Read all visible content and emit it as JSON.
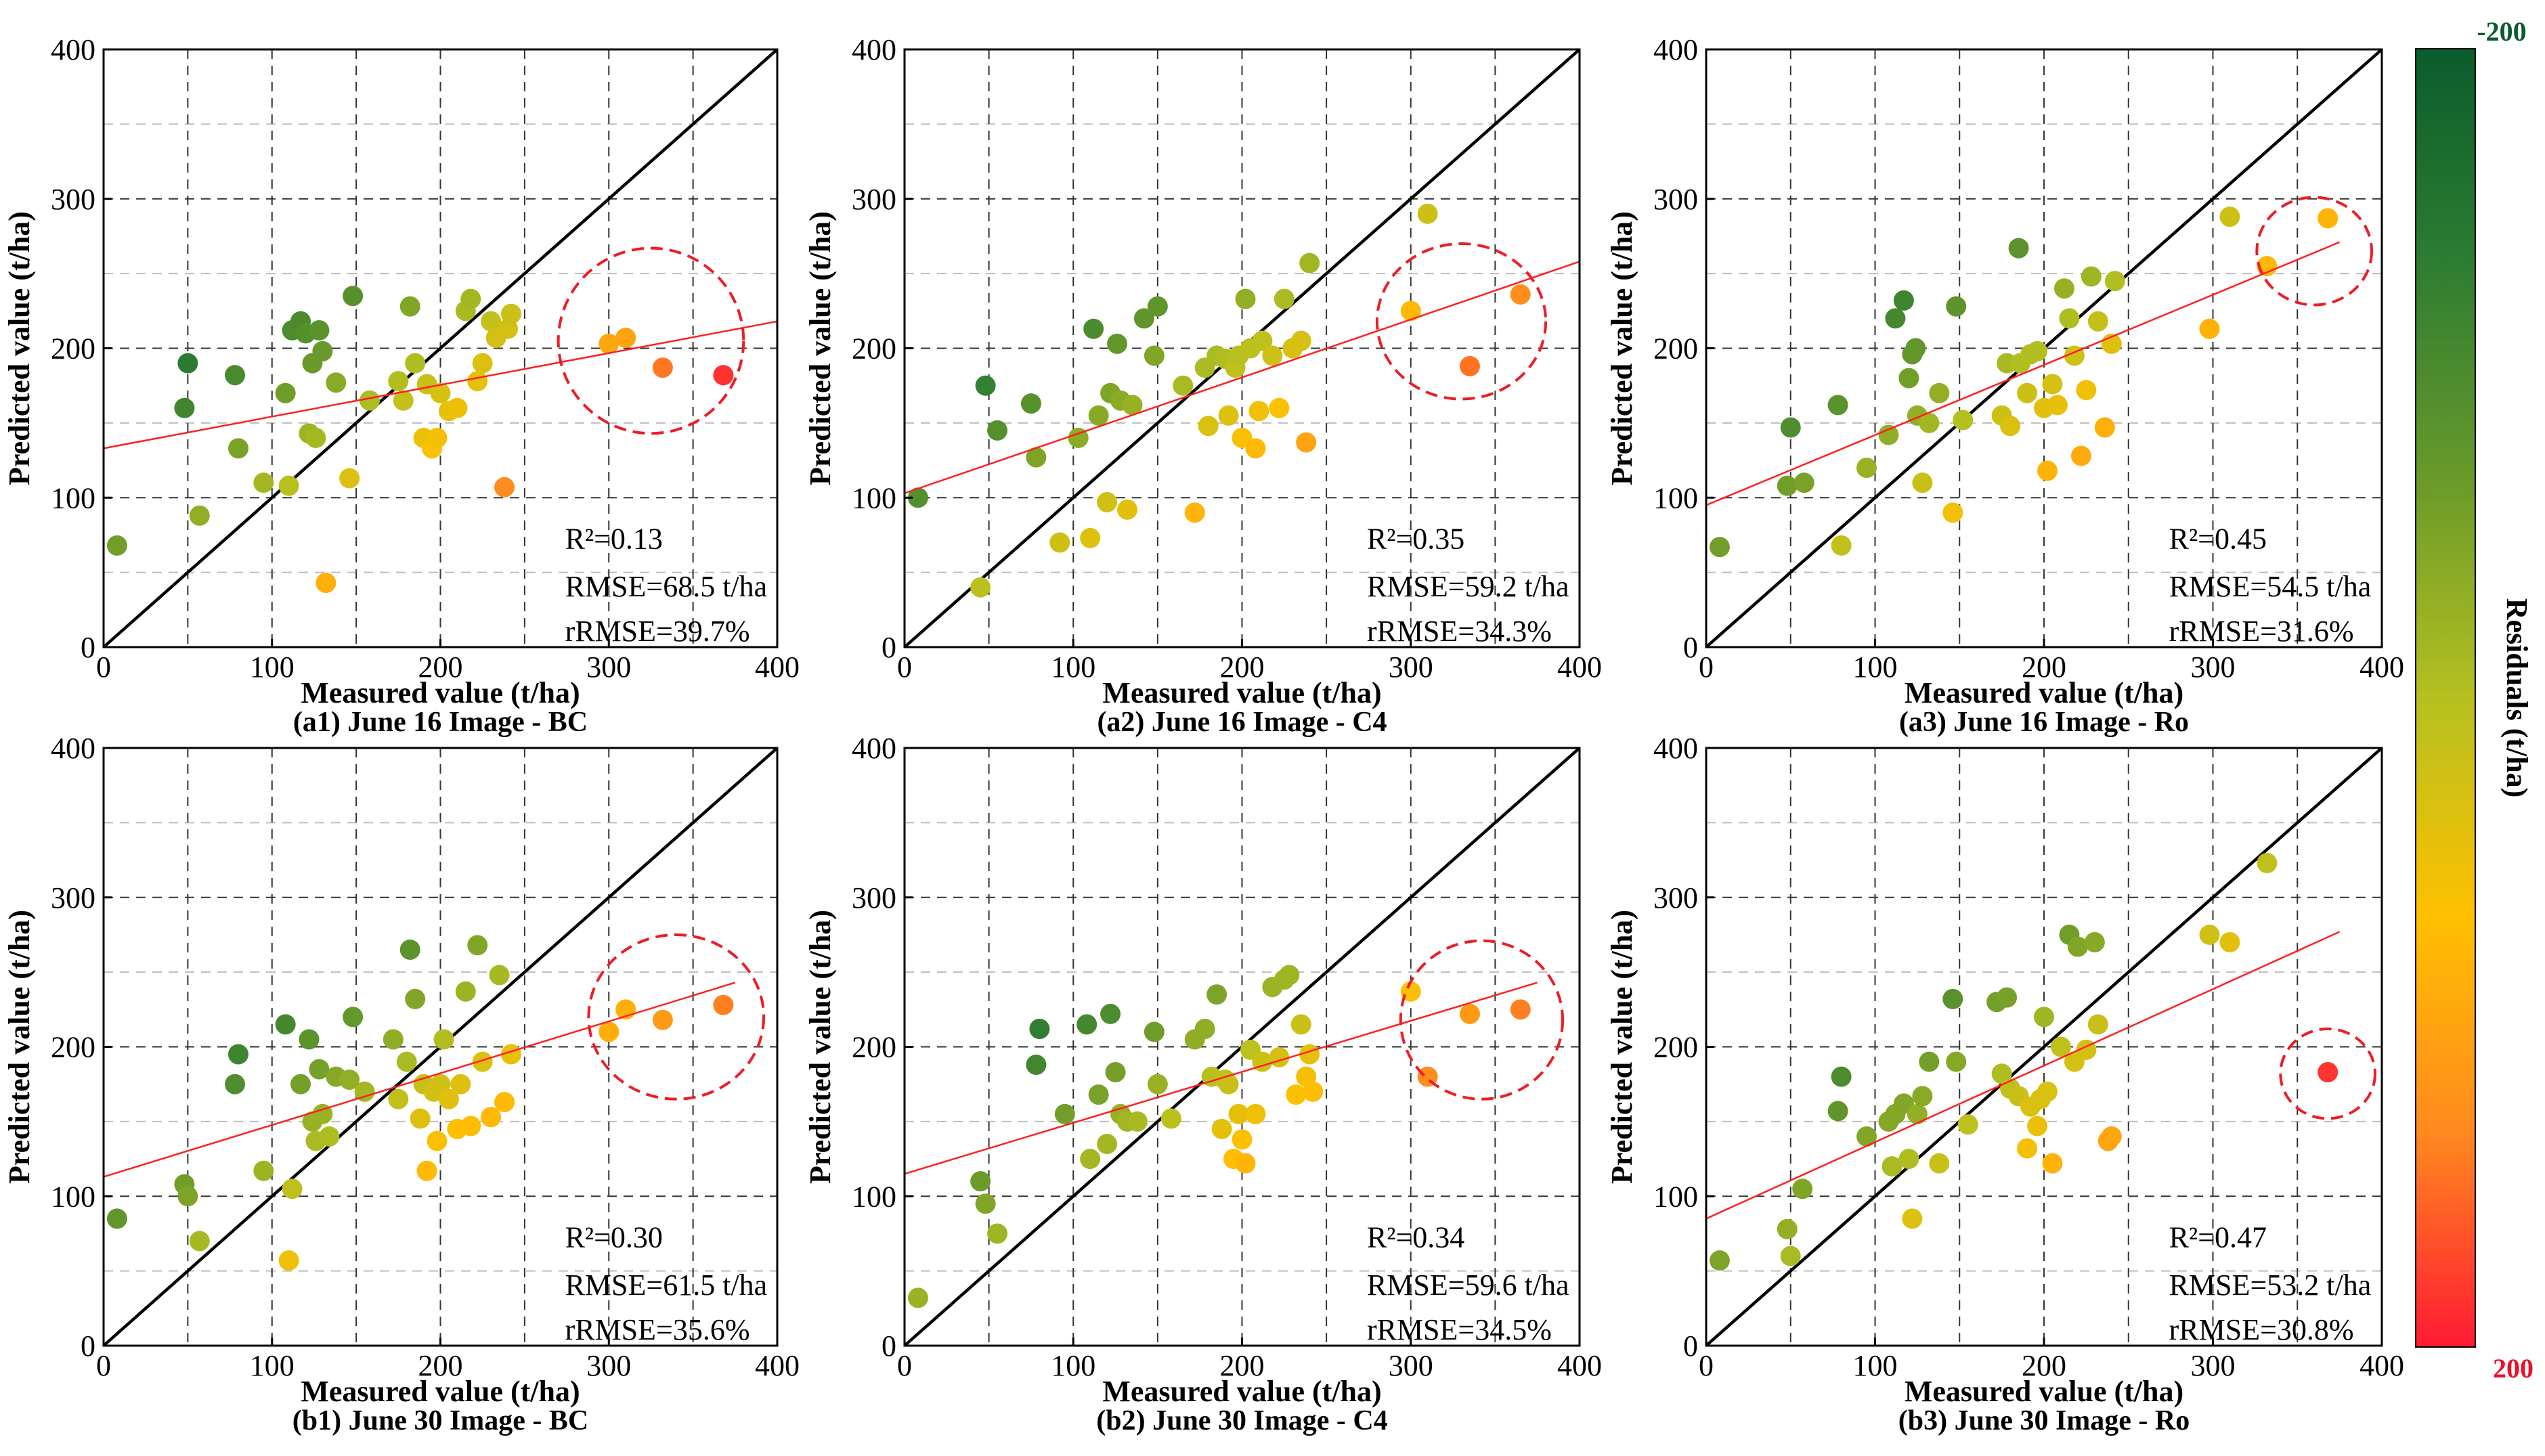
{
  "chart_data": [
    {
      "id": "a1",
      "type": "scatter",
      "caption": "(a1) June 16 Image - BC",
      "xlabel": "Measured value (t/ha)",
      "ylabel": "Predicted value (t/ha)",
      "xlim": [
        0,
        400
      ],
      "ylim": [
        0,
        400
      ],
      "ticks": [
        "0",
        "100",
        "200",
        "300",
        "400"
      ],
      "stats": {
        "r2": "R²=0.13",
        "rmse": "RMSE=68.5 t/ha",
        "rrmse": "rRMSE=39.7%"
      },
      "fit_line": [
        [
          0,
          133
        ],
        [
          400,
          218
        ]
      ],
      "outlier_circle": {
        "cx": 325,
        "cy": 205,
        "rx": 55,
        "ry": 62
      },
      "points": [
        [
          8,
          68
        ],
        [
          48,
          160
        ],
        [
          50,
          190
        ],
        [
          57,
          88
        ],
        [
          78,
          182
        ],
        [
          80,
          133
        ],
        [
          95,
          110
        ],
        [
          108,
          170
        ],
        [
          110,
          108
        ],
        [
          112,
          212
        ],
        [
          117,
          218
        ],
        [
          120,
          210
        ],
        [
          122,
          143
        ],
        [
          124,
          190
        ],
        [
          126,
          140
        ],
        [
          128,
          212
        ],
        [
          130,
          198
        ],
        [
          132,
          43
        ],
        [
          138,
          177
        ],
        [
          146,
          113
        ],
        [
          148,
          235
        ],
        [
          158,
          165
        ],
        [
          175,
          178
        ],
        [
          178,
          165
        ],
        [
          182,
          228
        ],
        [
          185,
          190
        ],
        [
          190,
          140
        ],
        [
          192,
          176
        ],
        [
          195,
          133
        ],
        [
          198,
          140
        ],
        [
          200,
          170
        ],
        [
          205,
          158
        ],
        [
          210,
          160
        ],
        [
          215,
          225
        ],
        [
          218,
          233
        ],
        [
          222,
          178
        ],
        [
          225,
          190
        ],
        [
          230,
          218
        ],
        [
          233,
          207
        ],
        [
          238,
          107
        ],
        [
          240,
          213
        ],
        [
          242,
          223
        ],
        [
          300,
          203
        ],
        [
          310,
          207
        ],
        [
          332,
          187
        ],
        [
          368,
          182
        ]
      ]
    },
    {
      "id": "a2",
      "type": "scatter",
      "caption": "(a2) June 16 Image - C4",
      "xlabel": "Measured value (t/ha)",
      "ylabel": "Predicted value (t/ha)",
      "xlim": [
        0,
        400
      ],
      "ylim": [
        0,
        400
      ],
      "ticks": [
        "0",
        "100",
        "200",
        "300",
        "400"
      ],
      "stats": {
        "r2": "R²=0.35",
        "rmse": "RMSE=59.2 t/ha",
        "rrmse": "rRMSE=34.3%"
      },
      "fit_line": [
        [
          0,
          103
        ],
        [
          400,
          258
        ]
      ],
      "outlier_circle": {
        "cx": 330,
        "cy": 218,
        "rx": 50,
        "ry": 52
      },
      "points": [
        [
          8,
          100
        ],
        [
          45,
          40
        ],
        [
          48,
          175
        ],
        [
          55,
          145
        ],
        [
          75,
          163
        ],
        [
          78,
          127
        ],
        [
          92,
          70
        ],
        [
          103,
          140
        ],
        [
          110,
          73
        ],
        [
          112,
          213
        ],
        [
          115,
          155
        ],
        [
          120,
          97
        ],
        [
          122,
          170
        ],
        [
          126,
          203
        ],
        [
          128,
          165
        ],
        [
          132,
          92
        ],
        [
          135,
          162
        ],
        [
          142,
          220
        ],
        [
          148,
          195
        ],
        [
          150,
          228
        ],
        [
          165,
          175
        ],
        [
          172,
          90
        ],
        [
          178,
          187
        ],
        [
          180,
          148
        ],
        [
          185,
          195
        ],
        [
          190,
          193
        ],
        [
          192,
          155
        ],
        [
          196,
          187
        ],
        [
          198,
          195
        ],
        [
          200,
          140
        ],
        [
          202,
          233
        ],
        [
          205,
          200
        ],
        [
          208,
          133
        ],
        [
          210,
          158
        ],
        [
          212,
          205
        ],
        [
          218,
          195
        ],
        [
          222,
          160
        ],
        [
          225,
          233
        ],
        [
          230,
          200
        ],
        [
          235,
          205
        ],
        [
          238,
          137
        ],
        [
          240,
          257
        ],
        [
          300,
          225
        ],
        [
          310,
          290
        ],
        [
          335,
          188
        ],
        [
          365,
          236
        ]
      ]
    },
    {
      "id": "a3",
      "type": "scatter",
      "caption": "(a3) June 16 Image - Ro",
      "xlabel": "Measured value (t/ha)",
      "ylabel": "Predicted value (t/ha)",
      "xlim": [
        0,
        400
      ],
      "ylim": [
        0,
        400
      ],
      "ticks": [
        "0",
        "100",
        "200",
        "300",
        "400"
      ],
      "stats": {
        "r2": "R²=0.45",
        "rmse": "RMSE=54.5 t/ha",
        "rrmse": "rRMSE=31.6%"
      },
      "fit_line": [
        [
          0,
          95
        ],
        [
          375,
          271
        ]
      ],
      "outlier_circle": {
        "cx": 360,
        "cy": 265,
        "rx": 34,
        "ry": 36
      },
      "points": [
        [
          8,
          67
        ],
        [
          48,
          108
        ],
        [
          50,
          147
        ],
        [
          58,
          110
        ],
        [
          78,
          162
        ],
        [
          80,
          68
        ],
        [
          95,
          120
        ],
        [
          108,
          142
        ],
        [
          112,
          220
        ],
        [
          117,
          232
        ],
        [
          120,
          180
        ],
        [
          122,
          196
        ],
        [
          124,
          200
        ],
        [
          125,
          155
        ],
        [
          128,
          110
        ],
        [
          132,
          150
        ],
        [
          138,
          170
        ],
        [
          146,
          90
        ],
        [
          148,
          228
        ],
        [
          152,
          152
        ],
        [
          175,
          155
        ],
        [
          178,
          190
        ],
        [
          180,
          148
        ],
        [
          185,
          267
        ],
        [
          186,
          190
        ],
        [
          190,
          170
        ],
        [
          192,
          196
        ],
        [
          196,
          198
        ],
        [
          200,
          160
        ],
        [
          202,
          118
        ],
        [
          205,
          176
        ],
        [
          208,
          162
        ],
        [
          212,
          240
        ],
        [
          215,
          220
        ],
        [
          218,
          195
        ],
        [
          222,
          128
        ],
        [
          225,
          172
        ],
        [
          228,
          248
        ],
        [
          232,
          218
        ],
        [
          236,
          147
        ],
        [
          240,
          203
        ],
        [
          242,
          245
        ],
        [
          298,
          213
        ],
        [
          310,
          288
        ],
        [
          332,
          255
        ],
        [
          368,
          287
        ]
      ]
    },
    {
      "id": "b1",
      "type": "scatter",
      "caption": "(b1) June 30 Image - BC",
      "xlabel": "Measured value (t/ha)",
      "ylabel": "Predicted value (t/ha)",
      "xlim": [
        0,
        400
      ],
      "ylim": [
        0,
        400
      ],
      "ticks": [
        "0",
        "100",
        "200",
        "300",
        "400"
      ],
      "stats": {
        "r2": "R²=0.30",
        "rmse": "RMSE=61.5 t/ha",
        "rrmse": "rRMSE=35.6%"
      },
      "fit_line": [
        [
          0,
          113
        ],
        [
          375,
          243
        ]
      ],
      "outlier_circle": {
        "cx": 340,
        "cy": 220,
        "rx": 52,
        "ry": 55
      },
      "points": [
        [
          8,
          85
        ],
        [
          48,
          108
        ],
        [
          50,
          100
        ],
        [
          57,
          70
        ],
        [
          78,
          175
        ],
        [
          80,
          195
        ],
        [
          95,
          117
        ],
        [
          108,
          215
        ],
        [
          110,
          57
        ],
        [
          112,
          105
        ],
        [
          117,
          175
        ],
        [
          122,
          205
        ],
        [
          124,
          150
        ],
        [
          126,
          137
        ],
        [
          128,
          185
        ],
        [
          130,
          155
        ],
        [
          134,
          140
        ],
        [
          138,
          180
        ],
        [
          146,
          178
        ],
        [
          148,
          220
        ],
        [
          155,
          170
        ],
        [
          172,
          205
        ],
        [
          175,
          165
        ],
        [
          180,
          190
        ],
        [
          182,
          265
        ],
        [
          185,
          232
        ],
        [
          188,
          152
        ],
        [
          190,
          175
        ],
        [
          192,
          117
        ],
        [
          196,
          170
        ],
        [
          198,
          137
        ],
        [
          200,
          175
        ],
        [
          202,
          205
        ],
        [
          205,
          165
        ],
        [
          210,
          145
        ],
        [
          212,
          175
        ],
        [
          215,
          237
        ],
        [
          218,
          147
        ],
        [
          222,
          268
        ],
        [
          225,
          190
        ],
        [
          230,
          153
        ],
        [
          235,
          248
        ],
        [
          238,
          163
        ],
        [
          242,
          195
        ],
        [
          300,
          210
        ],
        [
          310,
          225
        ],
        [
          332,
          218
        ],
        [
          368,
          228
        ]
      ]
    },
    {
      "id": "b2",
      "type": "scatter",
      "caption": "(b2) June 30 Image - C4",
      "xlabel": "Measured value (t/ha)",
      "ylabel": "Predicted value (t/ha)",
      "xlim": [
        0,
        400
      ],
      "ylim": [
        0,
        400
      ],
      "ticks": [
        "0",
        "100",
        "200",
        "300",
        "400"
      ],
      "stats": {
        "r2": "R²=0.34",
        "rmse": "RMSE=59.6 t/ha",
        "rrmse": "rRMSE=34.5%"
      },
      "fit_line": [
        [
          0,
          115
        ],
        [
          375,
          243
        ]
      ],
      "outlier_circle": {
        "cx": 342,
        "cy": 218,
        "rx": 48,
        "ry": 53
      },
      "points": [
        [
          8,
          32
        ],
        [
          45,
          110
        ],
        [
          48,
          95
        ],
        [
          55,
          75
        ],
        [
          78,
          188
        ],
        [
          80,
          212
        ],
        [
          95,
          155
        ],
        [
          108,
          215
        ],
        [
          110,
          125
        ],
        [
          115,
          168
        ],
        [
          120,
          135
        ],
        [
          122,
          222
        ],
        [
          125,
          183
        ],
        [
          128,
          155
        ],
        [
          132,
          150
        ],
        [
          138,
          150
        ],
        [
          148,
          210
        ],
        [
          150,
          175
        ],
        [
          158,
          152
        ],
        [
          172,
          205
        ],
        [
          178,
          212
        ],
        [
          182,
          180
        ],
        [
          185,
          235
        ],
        [
          188,
          145
        ],
        [
          190,
          178
        ],
        [
          192,
          175
        ],
        [
          195,
          125
        ],
        [
          198,
          155
        ],
        [
          200,
          138
        ],
        [
          202,
          122
        ],
        [
          205,
          198
        ],
        [
          208,
          155
        ],
        [
          212,
          190
        ],
        [
          218,
          240
        ],
        [
          222,
          193
        ],
        [
          225,
          245
        ],
        [
          228,
          248
        ],
        [
          232,
          168
        ],
        [
          235,
          215
        ],
        [
          238,
          180
        ],
        [
          240,
          195
        ],
        [
          242,
          170
        ],
        [
          300,
          237
        ],
        [
          310,
          180
        ],
        [
          335,
          222
        ],
        [
          365,
          225
        ]
      ]
    },
    {
      "id": "b3",
      "type": "scatter",
      "caption": "(b3) June 30 Image - Ro",
      "xlabel": "Measured value (t/ha)",
      "ylabel": "Predicted value (t/ha)",
      "xlim": [
        0,
        400
      ],
      "ylim": [
        0,
        400
      ],
      "ticks": [
        "0",
        "100",
        "200",
        "300",
        "400"
      ],
      "stats": {
        "r2": "R²=0.47",
        "rmse": "RMSE=53.2 t/ha",
        "rrmse": "rRMSE=30.8%"
      },
      "fit_line": [
        [
          0,
          85
        ],
        [
          375,
          277
        ]
      ],
      "outlier_circle": {
        "cx": 368,
        "cy": 182,
        "rx": 28,
        "ry": 30
      },
      "points": [
        [
          8,
          57
        ],
        [
          48,
          78
        ],
        [
          50,
          60
        ],
        [
          57,
          105
        ],
        [
          78,
          157
        ],
        [
          80,
          180
        ],
        [
          95,
          140
        ],
        [
          108,
          150
        ],
        [
          110,
          120
        ],
        [
          112,
          155
        ],
        [
          117,
          162
        ],
        [
          120,
          125
        ],
        [
          122,
          85
        ],
        [
          125,
          155
        ],
        [
          128,
          167
        ],
        [
          132,
          190
        ],
        [
          138,
          122
        ],
        [
          146,
          232
        ],
        [
          148,
          190
        ],
        [
          155,
          148
        ],
        [
          172,
          230
        ],
        [
          175,
          182
        ],
        [
          178,
          233
        ],
        [
          180,
          172
        ],
        [
          185,
          167
        ],
        [
          190,
          132
        ],
        [
          192,
          160
        ],
        [
          196,
          147
        ],
        [
          198,
          165
        ],
        [
          200,
          220
        ],
        [
          202,
          170
        ],
        [
          205,
          122
        ],
        [
          210,
          200
        ],
        [
          215,
          275
        ],
        [
          218,
          190
        ],
        [
          220,
          267
        ],
        [
          225,
          198
        ],
        [
          230,
          270
        ],
        [
          232,
          215
        ],
        [
          238,
          137
        ],
        [
          240,
          140
        ],
        [
          298,
          275
        ],
        [
          310,
          270
        ],
        [
          332,
          323
        ],
        [
          368,
          183
        ]
      ]
    }
  ],
  "colorbar": {
    "title": "Residuals (t/ha)",
    "min_label": "-200",
    "max_label": "200",
    "min_value": -200,
    "max_value": 200,
    "min_color": "#0b5c2c",
    "max_color": "#ff1a33",
    "stops": [
      "#0b5c2c",
      "#2e7d32",
      "#6a9a2a",
      "#b5c020",
      "#ffc000",
      "#ff8a1f",
      "#ff1a33"
    ]
  }
}
